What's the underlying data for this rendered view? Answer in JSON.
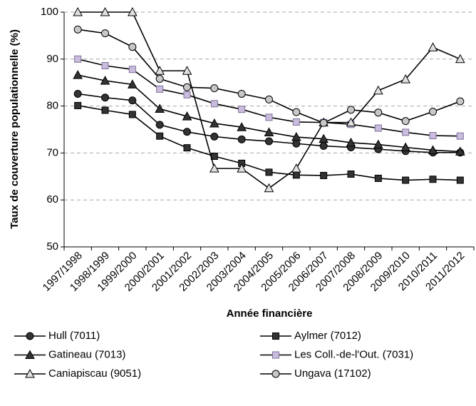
{
  "chart_data": {
    "type": "line",
    "x_label": "Année financière",
    "y_label": "Taux de couverture populationnelle (%)",
    "categories": [
      "1997/1998",
      "1998/1999",
      "1999/2000",
      "2000/2001",
      "2001/2002",
      "2002/2003",
      "2003/2004",
      "2004/2005",
      "2005/2006",
      "2006/2007",
      "2007/2008",
      "2008/2009",
      "2009/2010",
      "2010/2011",
      "2011/2012"
    ],
    "ylim": [
      50,
      100
    ],
    "yticks": [
      50,
      60,
      70,
      80,
      90,
      100
    ],
    "grid": true,
    "legend": "bottom",
    "series": [
      {
        "name": "Hull (7011)",
        "color": "#000000",
        "marker": "circle",
        "marker_fill": "#333333",
        "values": [
          82.6,
          81.8,
          81.2,
          76.0,
          74.5,
          73.5,
          72.9,
          72.5,
          72.0,
          71.5,
          71.2,
          70.8,
          70.4,
          70.1,
          70.1
        ]
      },
      {
        "name": "Aylmer (7012)",
        "color": "#000000",
        "marker": "square",
        "marker_fill": "#333333",
        "values": [
          80.1,
          79.1,
          78.2,
          73.6,
          71.1,
          69.3,
          67.8,
          65.9,
          65.3,
          65.2,
          65.5,
          64.6,
          64.2,
          64.4,
          64.2
        ]
      },
      {
        "name": "Gatineau (7013)",
        "color": "#000000",
        "marker": "triangle",
        "marker_fill": "#333333",
        "values": [
          86.6,
          85.4,
          84.6,
          79.4,
          77.8,
          76.3,
          75.5,
          74.4,
          73.4,
          73.0,
          72.2,
          71.8,
          71.2,
          70.6,
          70.3
        ]
      },
      {
        "name": "Les Coll.-de-l'Out. (7031)",
        "color": "#000000",
        "marker": "square",
        "marker_fill": "#c9bcdc",
        "values": [
          90.0,
          88.6,
          87.8,
          83.6,
          82.4,
          80.5,
          79.3,
          77.6,
          76.6,
          76.5,
          76.1,
          75.3,
          74.4,
          73.7,
          73.6
        ]
      },
      {
        "name": "Caniapiscau (9051)",
        "color": "#000000",
        "marker": "triangle",
        "marker_fill": "#e0e0e0",
        "values": [
          100,
          100,
          100,
          87.5,
          87.5,
          66.7,
          66.7,
          62.5,
          66.7,
          76.5,
          76.5,
          83.3,
          85.7,
          92.5,
          90.0
        ]
      },
      {
        "name": "Ungava (17102)",
        "color": "#000000",
        "marker": "circle",
        "marker_fill": "#c8c8c8",
        "values": [
          96.3,
          95.5,
          92.6,
          85.8,
          84.0,
          83.8,
          82.6,
          81.4,
          78.7,
          76.4,
          79.2,
          78.6,
          76.8,
          78.8,
          81.0
        ]
      }
    ]
  }
}
